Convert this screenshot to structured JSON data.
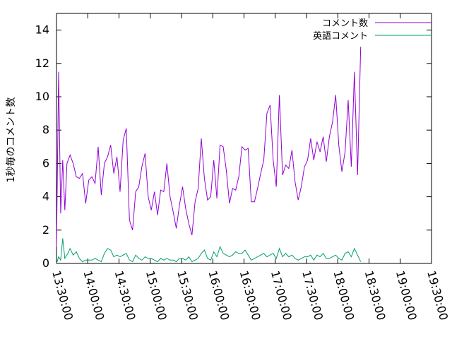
{
  "chart_data": {
    "type": "line",
    "title": "",
    "xlabel": "",
    "ylabel": "1秒毎のコメント数",
    "xlim": [
      "13:30:00",
      "19:30:00"
    ],
    "ylim": [
      0,
      15
    ],
    "yticks": [
      0,
      2,
      4,
      6,
      8,
      10,
      12,
      14
    ],
    "xticks": [
      "13:30:00",
      "14:00:00",
      "14:30:00",
      "15:00:00",
      "15:30:00",
      "16:00:00",
      "16:30:00",
      "17:00:00",
      "17:30:00",
      "18:00:00",
      "18:30:00",
      "19:00:00",
      "19:30:00"
    ],
    "legend_position": "top-right",
    "grid": false,
    "series": [
      {
        "name": "コメント数",
        "color": "#9400d3",
        "points": [
          [
            "13:30:00",
            1.0
          ],
          [
            "13:32:00",
            11.5
          ],
          [
            "13:34:00",
            3.0
          ],
          [
            "13:36:00",
            6.2
          ],
          [
            "13:38:00",
            3.2
          ],
          [
            "13:40:00",
            6.0
          ],
          [
            "13:43:00",
            6.5
          ],
          [
            "13:46:00",
            6.0
          ],
          [
            "13:49:00",
            5.2
          ],
          [
            "13:52:00",
            5.1
          ],
          [
            "13:55:00",
            5.4
          ],
          [
            "13:58:00",
            3.6
          ],
          [
            "14:01:00",
            5.0
          ],
          [
            "14:04:00",
            5.2
          ],
          [
            "14:07:00",
            4.8
          ],
          [
            "14:10:00",
            7.0
          ],
          [
            "14:13:00",
            4.1
          ],
          [
            "14:16:00",
            6.0
          ],
          [
            "14:19:00",
            6.4
          ],
          [
            "14:22:00",
            7.1
          ],
          [
            "14:25:00",
            5.4
          ],
          [
            "14:28:00",
            6.4
          ],
          [
            "14:31:00",
            4.3
          ],
          [
            "14:34:00",
            7.4
          ],
          [
            "14:37:00",
            8.1
          ],
          [
            "14:40:00",
            2.6
          ],
          [
            "14:43:00",
            2.0
          ],
          [
            "14:46:00",
            4.3
          ],
          [
            "14:49:00",
            4.6
          ],
          [
            "14:52:00",
            5.8
          ],
          [
            "14:55:00",
            6.6
          ],
          [
            "14:58:00",
            4.0
          ],
          [
            "15:01:00",
            3.2
          ],
          [
            "15:04:00",
            4.3
          ],
          [
            "15:07:00",
            2.9
          ],
          [
            "15:10:00",
            4.4
          ],
          [
            "15:13:00",
            4.3
          ],
          [
            "15:16:00",
            6.0
          ],
          [
            "15:19:00",
            4.0
          ],
          [
            "15:22:00",
            3.1
          ],
          [
            "15:25:00",
            2.1
          ],
          [
            "15:28:00",
            3.5
          ],
          [
            "15:31:00",
            4.6
          ],
          [
            "15:34:00",
            3.3
          ],
          [
            "15:37:00",
            2.4
          ],
          [
            "15:40:00",
            1.7
          ],
          [
            "15:43:00",
            3.7
          ],
          [
            "15:46:00",
            4.5
          ],
          [
            "15:49:00",
            7.5
          ],
          [
            "15:52:00",
            5.1
          ],
          [
            "15:55:00",
            3.8
          ],
          [
            "15:58:00",
            4.0
          ],
          [
            "16:01:00",
            6.2
          ],
          [
            "16:04:00",
            3.9
          ],
          [
            "16:07:00",
            7.1
          ],
          [
            "16:10:00",
            7.0
          ],
          [
            "16:13:00",
            5.6
          ],
          [
            "16:16:00",
            3.6
          ],
          [
            "16:19:00",
            4.5
          ],
          [
            "16:22:00",
            4.4
          ],
          [
            "16:25:00",
            5.2
          ],
          [
            "16:28:00",
            7.0
          ],
          [
            "16:31:00",
            6.8
          ],
          [
            "16:34:00",
            6.9
          ],
          [
            "16:37:00",
            3.7
          ],
          [
            "16:40:00",
            3.7
          ],
          [
            "16:43:00",
            4.5
          ],
          [
            "16:46:00",
            5.4
          ],
          [
            "16:49:00",
            6.2
          ],
          [
            "16:52:00",
            9.0
          ],
          [
            "16:55:00",
            9.5
          ],
          [
            "16:58:00",
            6.2
          ],
          [
            "17:01:00",
            4.6
          ],
          [
            "17:04:00",
            10.1
          ],
          [
            "17:07:00",
            5.3
          ],
          [
            "17:10:00",
            5.9
          ],
          [
            "17:13:00",
            5.7
          ],
          [
            "17:16:00",
            6.8
          ],
          [
            "17:19:00",
            4.9
          ],
          [
            "17:22:00",
            3.8
          ],
          [
            "17:25:00",
            4.6
          ],
          [
            "17:28:00",
            5.8
          ],
          [
            "17:31:00",
            6.2
          ],
          [
            "17:34:00",
            7.5
          ],
          [
            "17:37:00",
            6.2
          ],
          [
            "17:40:00",
            7.3
          ],
          [
            "17:43:00",
            6.7
          ],
          [
            "17:46:00",
            7.6
          ],
          [
            "17:49:00",
            6.1
          ],
          [
            "17:52:00",
            7.6
          ],
          [
            "17:55:00",
            8.5
          ],
          [
            "17:58:00",
            10.1
          ],
          [
            "18:01:00",
            7.1
          ],
          [
            "18:04:00",
            5.5
          ],
          [
            "18:07:00",
            6.7
          ],
          [
            "18:10:00",
            9.8
          ],
          [
            "18:13:00",
            5.8
          ],
          [
            "18:16:00",
            11.5
          ],
          [
            "18:19:00",
            5.3
          ],
          [
            "18:22:00",
            13.0
          ]
        ]
      },
      {
        "name": "英語コメント",
        "color": "#009e73",
        "points": [
          [
            "13:30:00",
            0.0
          ],
          [
            "13:32:00",
            0.4
          ],
          [
            "13:34:00",
            0.2
          ],
          [
            "13:36:00",
            1.5
          ],
          [
            "13:38:00",
            0.3
          ],
          [
            "13:41:00",
            0.6
          ],
          [
            "13:43:00",
            0.9
          ],
          [
            "13:46:00",
            0.5
          ],
          [
            "13:49:00",
            0.7
          ],
          [
            "13:52:00",
            0.3
          ],
          [
            "13:55:00",
            0.1
          ],
          [
            "13:58:00",
            0.2
          ],
          [
            "14:01:00",
            0.2
          ],
          [
            "14:04:00",
            0.2
          ],
          [
            "14:07:00",
            0.3
          ],
          [
            "14:10:00",
            0.2
          ],
          [
            "14:13:00",
            0.1
          ],
          [
            "14:16:00",
            0.6
          ],
          [
            "14:19:00",
            0.9
          ],
          [
            "14:22:00",
            0.8
          ],
          [
            "14:25:00",
            0.4
          ],
          [
            "14:28:00",
            0.5
          ],
          [
            "14:31:00",
            0.4
          ],
          [
            "14:34:00",
            0.5
          ],
          [
            "14:37:00",
            0.6
          ],
          [
            "14:40:00",
            0.2
          ],
          [
            "14:43:00",
            0.1
          ],
          [
            "14:46:00",
            0.5
          ],
          [
            "14:49:00",
            0.3
          ],
          [
            "14:52:00",
            0.2
          ],
          [
            "14:55:00",
            0.4
          ],
          [
            "14:58:00",
            0.3
          ],
          [
            "15:01:00",
            0.3
          ],
          [
            "15:04:00",
            0.2
          ],
          [
            "15:07:00",
            0.1
          ],
          [
            "15:10:00",
            0.3
          ],
          [
            "15:13:00",
            0.2
          ],
          [
            "15:16:00",
            0.3
          ],
          [
            "15:19:00",
            0.2
          ],
          [
            "15:22:00",
            0.2
          ],
          [
            "15:25:00",
            0.1
          ],
          [
            "15:28:00",
            0.3
          ],
          [
            "15:31:00",
            0.3
          ],
          [
            "15:34:00",
            0.2
          ],
          [
            "15:37:00",
            0.4
          ],
          [
            "15:40:00",
            0.1
          ],
          [
            "15:43:00",
            0.2
          ],
          [
            "15:46:00",
            0.3
          ],
          [
            "15:49:00",
            0.6
          ],
          [
            "15:52:00",
            0.8
          ],
          [
            "15:55:00",
            0.3
          ],
          [
            "15:58:00",
            0.2
          ],
          [
            "16:01:00",
            0.7
          ],
          [
            "16:04:00",
            0.4
          ],
          [
            "16:07:00",
            1.0
          ],
          [
            "16:10:00",
            0.6
          ],
          [
            "16:13:00",
            0.5
          ],
          [
            "16:16:00",
            0.4
          ],
          [
            "16:19:00",
            0.5
          ],
          [
            "16:22:00",
            0.7
          ],
          [
            "16:25:00",
            0.6
          ],
          [
            "16:28:00",
            0.6
          ],
          [
            "16:31:00",
            0.8
          ],
          [
            "16:34:00",
            0.5
          ],
          [
            "16:37:00",
            0.2
          ],
          [
            "16:40:00",
            0.3
          ],
          [
            "16:43:00",
            0.4
          ],
          [
            "16:46:00",
            0.5
          ],
          [
            "16:49:00",
            0.6
          ],
          [
            "16:52:00",
            0.4
          ],
          [
            "16:55:00",
            0.5
          ],
          [
            "16:58:00",
            0.6
          ],
          [
            "17:01:00",
            0.3
          ],
          [
            "17:04:00",
            0.9
          ],
          [
            "17:07:00",
            0.4
          ],
          [
            "17:10:00",
            0.6
          ],
          [
            "17:13:00",
            0.4
          ],
          [
            "17:16:00",
            0.5
          ],
          [
            "17:19:00",
            0.3
          ],
          [
            "17:22:00",
            0.2
          ],
          [
            "17:25:00",
            0.3
          ],
          [
            "17:28:00",
            0.4
          ],
          [
            "17:31:00",
            0.4
          ],
          [
            "17:34:00",
            0.5
          ],
          [
            "17:37:00",
            0.2
          ],
          [
            "17:40:00",
            0.5
          ],
          [
            "17:43:00",
            0.4
          ],
          [
            "17:46:00",
            0.6
          ],
          [
            "17:49:00",
            0.3
          ],
          [
            "17:52:00",
            0.3
          ],
          [
            "17:55:00",
            0.4
          ],
          [
            "17:58:00",
            0.5
          ],
          [
            "18:01:00",
            0.3
          ],
          [
            "18:04:00",
            0.2
          ],
          [
            "18:07:00",
            0.6
          ],
          [
            "18:10:00",
            0.7
          ],
          [
            "18:13:00",
            0.4
          ],
          [
            "18:16:00",
            0.9
          ],
          [
            "18:19:00",
            0.5
          ],
          [
            "18:22:00",
            0.1
          ]
        ]
      }
    ]
  }
}
